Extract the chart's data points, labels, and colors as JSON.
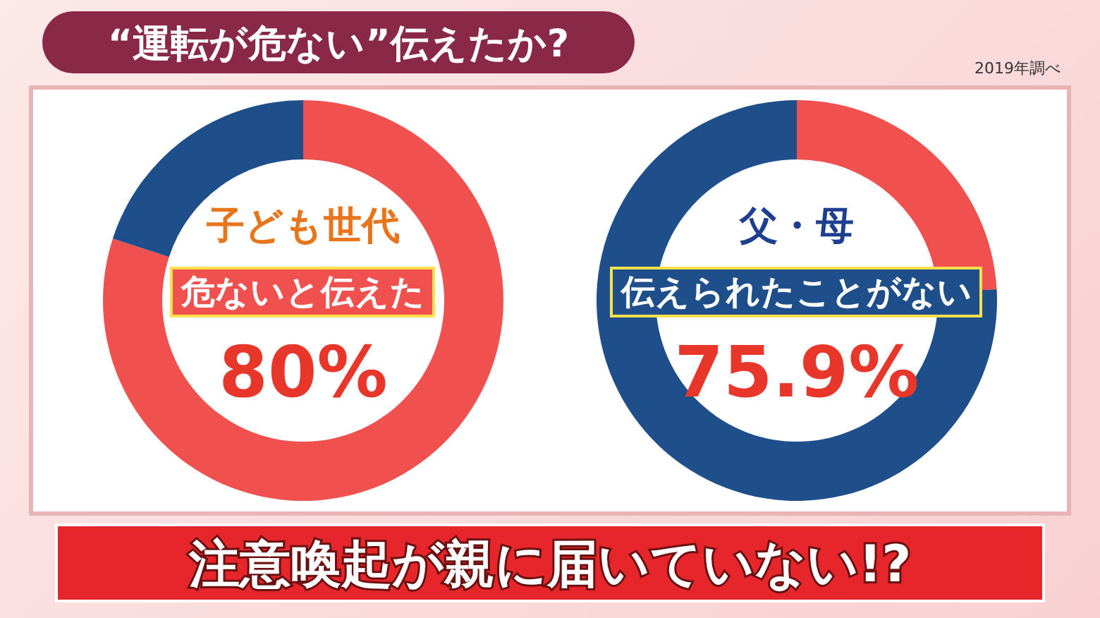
{
  "chart_data": [
    {
      "type": "donut",
      "title": "子ども世代",
      "categories": [
        "危ないと伝えた",
        null
      ],
      "values": [
        80,
        20
      ],
      "colors": [
        "#f0504e",
        "#1e4f8a"
      ],
      "value_labels": [
        "80%",
        null
      ],
      "annotations": [
        "“運転が危ない”伝えたか?",
        "2019年調べ",
        "注意喚起が親に届いていない!?"
      ]
    },
    {
      "type": "donut",
      "title": "父・母",
      "categories": [
        null,
        "伝えられたことがない"
      ],
      "values": [
        24.1,
        75.9
      ],
      "colors": [
        "#f0504e",
        "#1e4f8a"
      ],
      "value_labels": [
        null,
        "75.9%"
      ]
    }
  ]
}
